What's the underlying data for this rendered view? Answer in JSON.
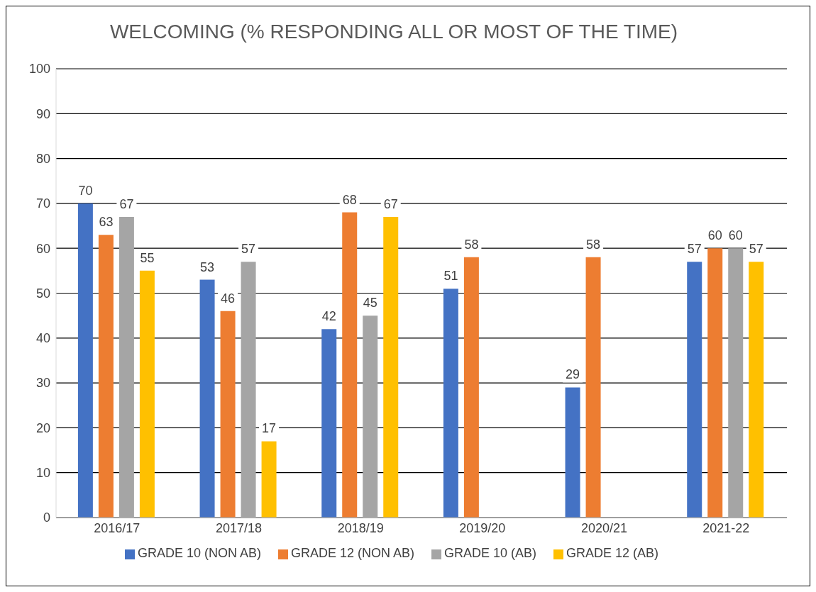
{
  "chart_data": {
    "type": "bar",
    "title": "WELCOMING (% RESPONDING ALL OR MOST OF THE TIME)",
    "categories": [
      "2016/17",
      "2017/18",
      "2018/19",
      "2019/20",
      "2020/21",
      "2021-22"
    ],
    "series": [
      {
        "name": "GRADE 10 (NON AB)",
        "color": "#4472c4",
        "values": [
          70,
          53,
          42,
          51,
          29,
          57
        ]
      },
      {
        "name": "GRADE 12 (NON AB)",
        "color": "#ed7d31",
        "values": [
          63,
          46,
          68,
          58,
          58,
          60
        ]
      },
      {
        "name": "GRADE 10 (AB)",
        "color": "#a5a5a5",
        "values": [
          67,
          57,
          45,
          null,
          null,
          60
        ]
      },
      {
        "name": "GRADE 12 (AB)",
        "color": "#ffc000",
        "values": [
          55,
          17,
          67,
          null,
          null,
          57
        ]
      }
    ],
    "ylim": [
      0,
      100
    ],
    "yticks": [
      0,
      10,
      20,
      30,
      40,
      50,
      60,
      70,
      80,
      90,
      100
    ],
    "grid": "y",
    "legend": "bottom",
    "data_labels": true
  }
}
